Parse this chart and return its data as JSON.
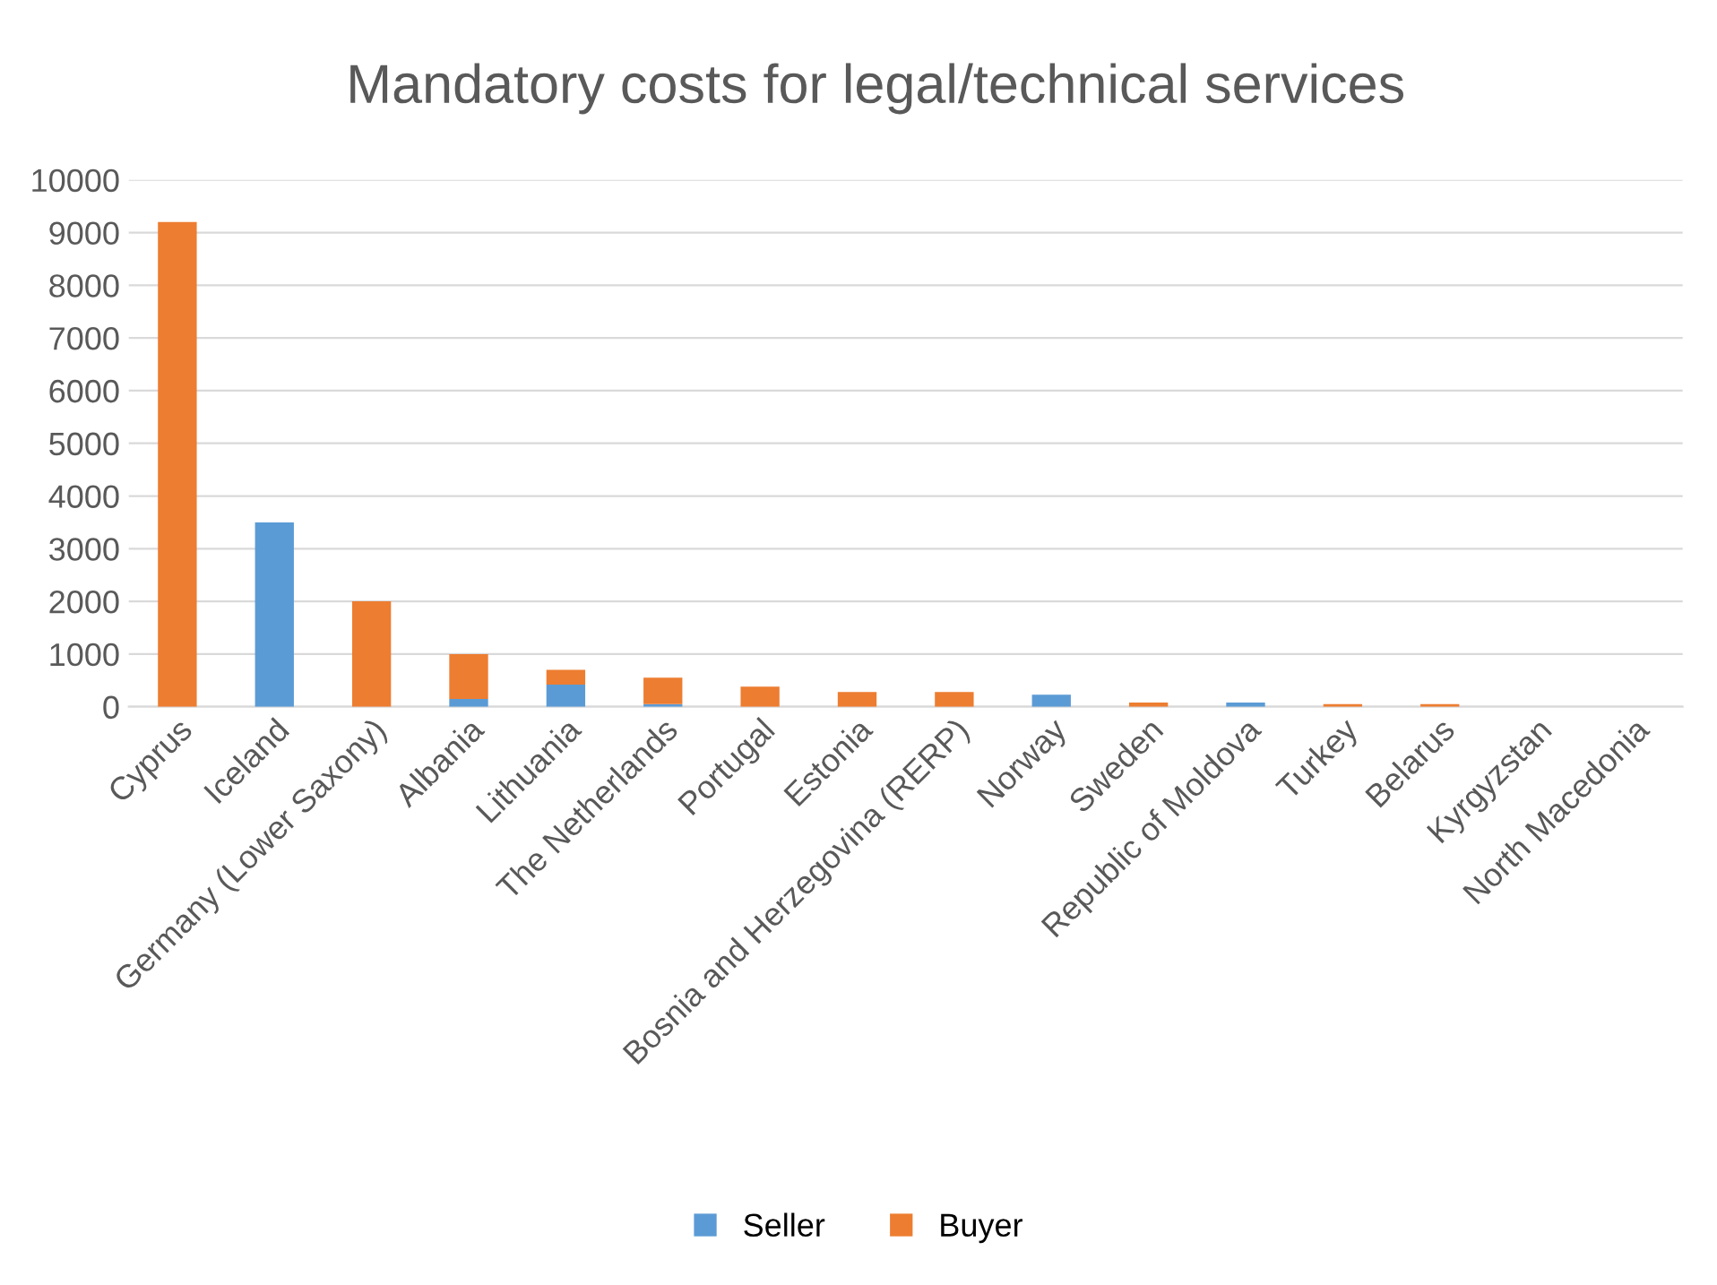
{
  "chart_data": {
    "type": "bar",
    "title": "Mandatory costs for legal/technical services",
    "categories": [
      "Cyprus",
      "Iceland",
      "Germany (Lower Saxony)",
      "Albania",
      "Lithuania",
      "The Netherlands",
      "Portugal",
      "Estonia",
      "Bosnia and Herzegovina (RERP)",
      "Norway",
      "Sweden",
      "Republic of Moldova",
      "Turkey",
      "Belarus",
      "Kyrgyzstan",
      "North Macedonia"
    ],
    "stacked": true,
    "series": [
      {
        "name": "Seller",
        "color": "#5b9bd5",
        "values": [
          0,
          3500,
          0,
          150,
          420,
          50,
          0,
          0,
          0,
          230,
          0,
          80,
          0,
          0,
          0,
          0
        ]
      },
      {
        "name": "Buyer",
        "color": "#ed7d31",
        "values": [
          9200,
          0,
          2000,
          850,
          280,
          500,
          380,
          280,
          280,
          0,
          80,
          0,
          50,
          50,
          0,
          0
        ]
      }
    ],
    "ylim": [
      0,
      10000
    ],
    "yticks": [
      0,
      1000,
      2000,
      3000,
      4000,
      5000,
      6000,
      7000,
      8000,
      9000,
      10000
    ],
    "grid": "y",
    "legend": "bottom"
  }
}
